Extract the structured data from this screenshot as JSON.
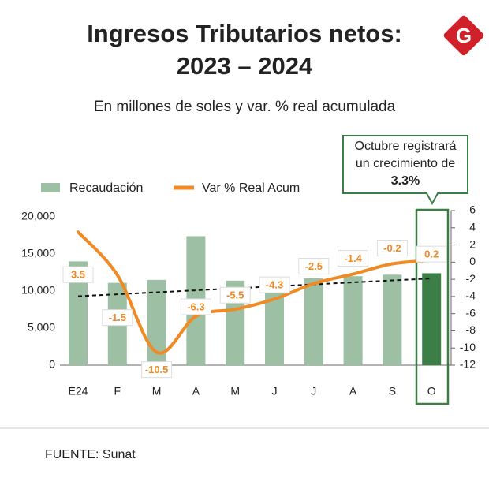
{
  "logo": "G",
  "chart_data": {
    "type": "bar",
    "title": [
      "Ingresos Tributarios netos:",
      "2023 – 2024"
    ],
    "subtitle": "En millones de soles y var. % real acumulada",
    "categories": [
      "E24",
      "F",
      "M",
      "A",
      "M",
      "J",
      "J",
      "A",
      "S",
      "O"
    ],
    "series": [
      {
        "name": "Recaudación",
        "type": "bar",
        "color": "#9dbfa3",
        "highlight_color": "#3b7f47",
        "values": [
          14000,
          11100,
          11500,
          17400,
          11400,
          10600,
          11700,
          12000,
          12200,
          12400
        ]
      },
      {
        "name": "Var % Real Acum",
        "type": "line",
        "axis": "y2",
        "color": "#f08a24",
        "values": [
          3.5,
          -1.5,
          -10.5,
          -6.3,
          -5.5,
          -4.3,
          -2.5,
          -1.4,
          -0.2,
          0.2
        ]
      }
    ],
    "trendline": {
      "values": [
        9300,
        11700
      ],
      "color": "#111111"
    },
    "ylim": [
      0,
      20000
    ],
    "yticks": [
      0,
      {
        "value": 5000,
        "label": "5,000"
      },
      {
        "value": 10000,
        "label": "10,000"
      },
      {
        "value": 15000,
        "label": "15,000"
      },
      {
        "value": 20000,
        "label": "20,000"
      }
    ],
    "y2lim": [
      -12,
      6
    ],
    "y2ticks": [
      -12,
      -10,
      -8,
      -6,
      -4,
      -2,
      0,
      2,
      4,
      6
    ],
    "annotation": [
      "Octubre registrará",
      "un crecimiento de",
      "3.3%"
    ],
    "source": "FUENTE: Sunat"
  }
}
